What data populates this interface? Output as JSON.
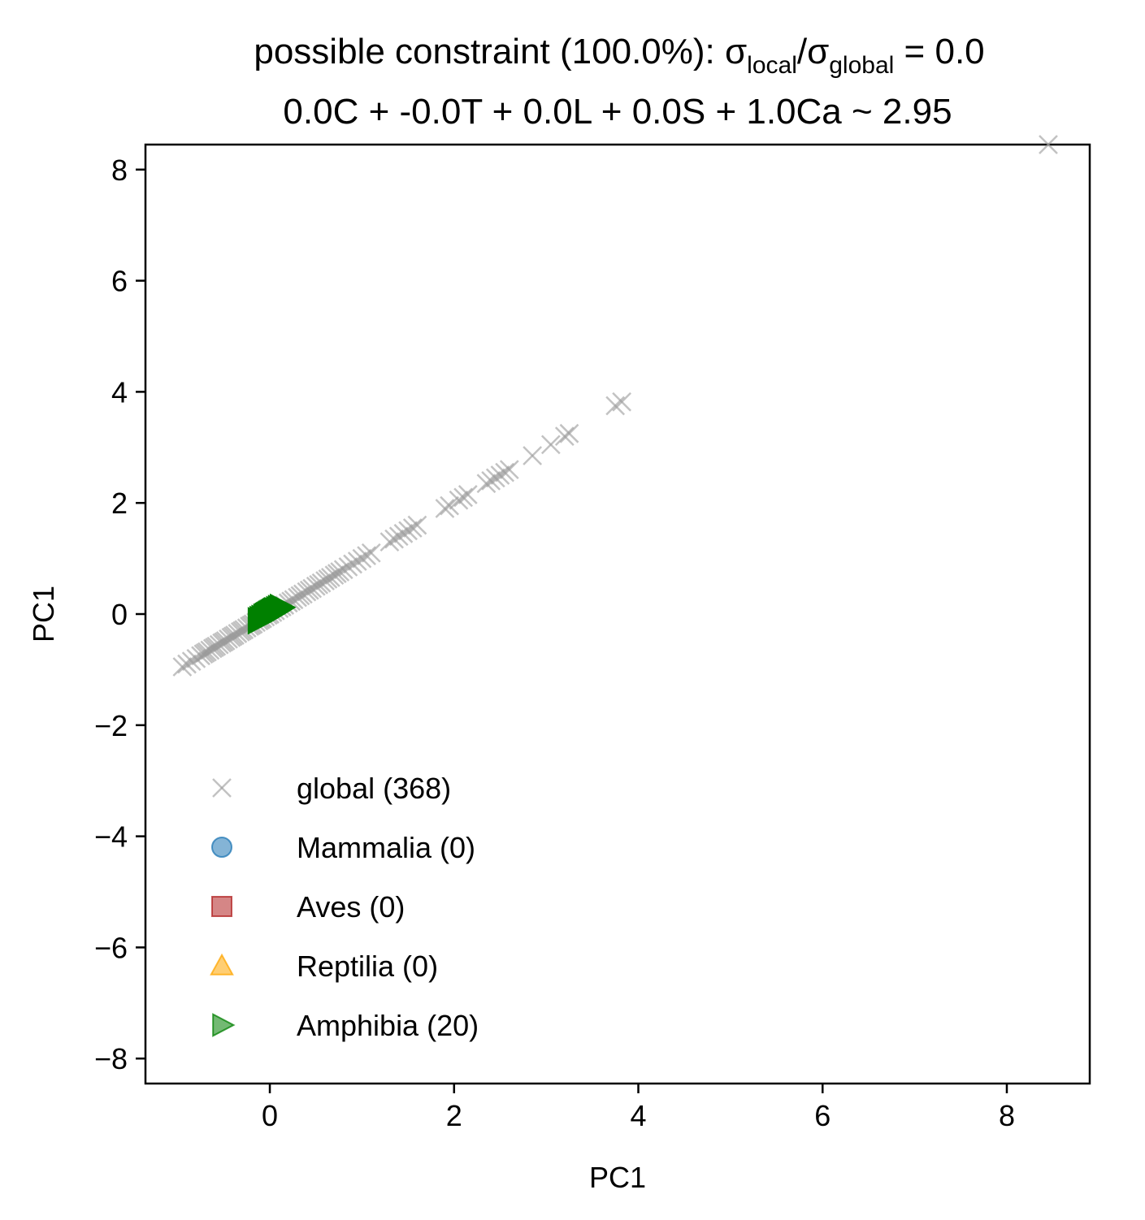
{
  "chart_data": {
    "type": "scatter",
    "title": {
      "line1_prefix": "possible constraint (100.0%): σ",
      "line1_sub1": "local",
      "line1_mid": "/σ",
      "line1_sub2": "global",
      "line1_suffix": " = 0.0",
      "line2": "0.0C + -0.0T + 0.0L + 0.0S + 1.0Ca ~ 2.95"
    },
    "xlabel": "PC1",
    "ylabel": "PC1",
    "xlim": [
      -1.35,
      8.9
    ],
    "ylim": [
      -8.45,
      8.45
    ],
    "xticks": [
      0,
      2,
      4,
      6,
      8
    ],
    "yticks": [
      -8,
      -6,
      -4,
      -2,
      0,
      2,
      4,
      6,
      8
    ],
    "grid": false,
    "legend_position": "lower-left",
    "series": [
      {
        "name": "global (368)",
        "marker": "x",
        "color": "#999999",
        "x": [
          -0.95,
          -0.9,
          -0.85,
          -0.8,
          -0.75,
          -0.72,
          -0.7,
          -0.68,
          -0.65,
          -0.62,
          -0.6,
          -0.58,
          -0.55,
          -0.52,
          -0.5,
          -0.48,
          -0.45,
          -0.42,
          -0.4,
          -0.38,
          -0.35,
          -0.32,
          -0.3,
          -0.28,
          -0.25,
          -0.22,
          -0.2,
          -0.18,
          -0.15,
          -0.12,
          -0.1,
          -0.08,
          -0.05,
          -0.02,
          0.0,
          0.03,
          0.06,
          0.1,
          0.13,
          0.16,
          0.2,
          0.23,
          0.26,
          0.3,
          0.33,
          0.36,
          0.4,
          0.43,
          0.46,
          0.5,
          0.53,
          0.56,
          0.6,
          0.63,
          0.66,
          0.7,
          0.73,
          0.76,
          0.8,
          0.85,
          0.9,
          0.95,
          1.0,
          1.05,
          1.1,
          1.3,
          1.35,
          1.4,
          1.45,
          1.5,
          1.55,
          1.6,
          1.9,
          1.95,
          2.05,
          2.1,
          2.15,
          2.35,
          2.4,
          2.45,
          2.5,
          2.55,
          2.6,
          2.85,
          3.05,
          3.2,
          3.25,
          3.75,
          3.82,
          8.45
        ],
        "y": [
          -0.95,
          -0.9,
          -0.85,
          -0.8,
          -0.75,
          -0.72,
          -0.7,
          -0.68,
          -0.65,
          -0.62,
          -0.6,
          -0.58,
          -0.55,
          -0.52,
          -0.5,
          -0.48,
          -0.45,
          -0.42,
          -0.4,
          -0.38,
          -0.35,
          -0.32,
          -0.3,
          -0.28,
          -0.25,
          -0.22,
          -0.2,
          -0.18,
          -0.15,
          -0.12,
          -0.1,
          -0.08,
          -0.05,
          -0.02,
          0.0,
          0.03,
          0.06,
          0.1,
          0.13,
          0.16,
          0.2,
          0.23,
          0.26,
          0.3,
          0.33,
          0.36,
          0.4,
          0.43,
          0.46,
          0.5,
          0.53,
          0.56,
          0.6,
          0.63,
          0.66,
          0.7,
          0.73,
          0.76,
          0.8,
          0.85,
          0.9,
          0.95,
          1.0,
          1.05,
          1.1,
          1.3,
          1.35,
          1.4,
          1.45,
          1.5,
          1.55,
          1.6,
          1.9,
          1.95,
          2.05,
          2.1,
          2.15,
          2.35,
          2.4,
          2.45,
          2.5,
          2.55,
          2.6,
          2.85,
          3.05,
          3.2,
          3.25,
          3.75,
          3.82,
          8.45
        ]
      },
      {
        "name": "Mammalia (0)",
        "marker": "o",
        "color": "#1f77b4",
        "x": [],
        "y": []
      },
      {
        "name": "Aves (0)",
        "marker": "s",
        "color": "#b22222",
        "x": [],
        "y": []
      },
      {
        "name": "Reptilia (0)",
        "marker": "^",
        "color": "#ffa500",
        "x": [],
        "y": []
      },
      {
        "name": "Amphibia (20)",
        "marker": ">",
        "color": "#008000",
        "x": [
          -0.12,
          -0.1,
          -0.08,
          -0.06,
          -0.05,
          -0.04,
          -0.03,
          -0.02,
          -0.01,
          0.0,
          0.0,
          0.01,
          0.02,
          0.03,
          0.04,
          0.05,
          0.06,
          0.08,
          0.1,
          0.12
        ],
        "y": [
          -0.12,
          -0.1,
          -0.08,
          -0.06,
          -0.05,
          -0.04,
          -0.03,
          -0.02,
          -0.01,
          0.0,
          0.0,
          0.01,
          0.02,
          0.03,
          0.04,
          0.05,
          0.06,
          0.08,
          0.1,
          0.12
        ]
      }
    ]
  }
}
